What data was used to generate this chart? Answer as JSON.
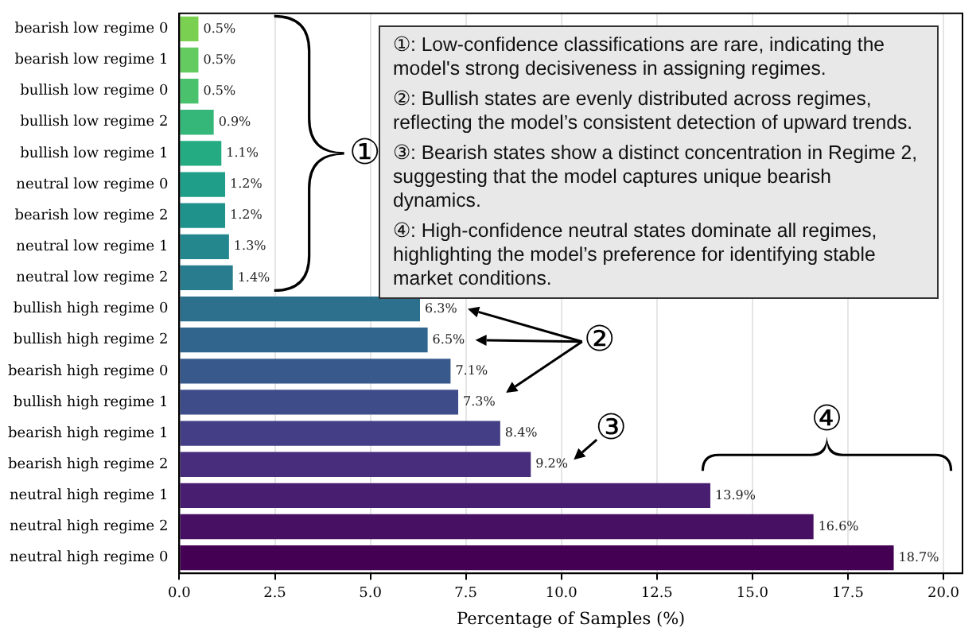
{
  "chart_data": {
    "type": "bar",
    "orientation": "horizontal",
    "categories": [
      "bearish low regime 0",
      "bearish low regime 1",
      "bullish low regime 0",
      "bullish low regime 2",
      "bullish low regime 1",
      "neutral low regime 0",
      "bearish low regime 2",
      "neutral low regime 1",
      "neutral low regime 2",
      "bullish high regime 0",
      "bullish high regime 2",
      "bearish high regime 0",
      "bullish high regime 1",
      "bearish high regime 1",
      "bearish high regime 2",
      "neutral high regime 1",
      "neutral high regime 2",
      "neutral high regime 0"
    ],
    "values": [
      0.5,
      0.5,
      0.5,
      0.9,
      1.1,
      1.2,
      1.2,
      1.3,
      1.4,
      6.3,
      6.5,
      7.1,
      7.3,
      8.4,
      9.2,
      13.9,
      16.6,
      18.7
    ],
    "value_labels": [
      "0.5%",
      "0.5%",
      "0.5%",
      "0.9%",
      "1.1%",
      "1.2%",
      "1.2%",
      "1.3%",
      "1.4%",
      "6.3%",
      "6.5%",
      "7.1%",
      "7.3%",
      "8.4%",
      "9.2%",
      "13.9%",
      "16.6%",
      "18.7%"
    ],
    "colors": [
      "#7ad151",
      "#63cb5f",
      "#4ac16d",
      "#35b779",
      "#25ab82",
      "#1f9e89",
      "#20928c",
      "#24878e",
      "#287c8e",
      "#2d708e",
      "#32658e",
      "#38598c",
      "#3e4c8a",
      "#433e85",
      "#472d7b",
      "#481f70",
      "#471063",
      "#440154"
    ],
    "xlabel": "Percentage of Samples (%)",
    "xlim": [
      0,
      20.5
    ],
    "xticks": [
      {
        "value": 0,
        "label": "0.0"
      },
      {
        "value": 2.5,
        "label": "2.5"
      },
      {
        "value": 5,
        "label": "5.0"
      },
      {
        "value": 7.5,
        "label": "7.5"
      },
      {
        "value": 10,
        "label": "10.0"
      },
      {
        "value": 12.5,
        "label": "12.5"
      },
      {
        "value": 15,
        "label": "15.0"
      },
      {
        "value": 17.5,
        "label": "17.5"
      },
      {
        "value": 20,
        "label": "20.0"
      }
    ],
    "grid": "x",
    "legend": false,
    "annotations": [
      "①: Low-confidence classifications are rare, indicating the model's strong decisiveness in assigning regimes.",
      "②: Bullish states are evenly distributed across regimes, reflecting the model’s consistent detection of upward trends.",
      "③: Bearish states show a distinct concentration in Regime 2, suggesting that the model captures unique bearish dynamics.",
      "④: High-confidence neutral states dominate all regimes, highlighting the model’s preference for identifying stable market conditions.",
      "①",
      "②",
      "③",
      "④"
    ]
  }
}
